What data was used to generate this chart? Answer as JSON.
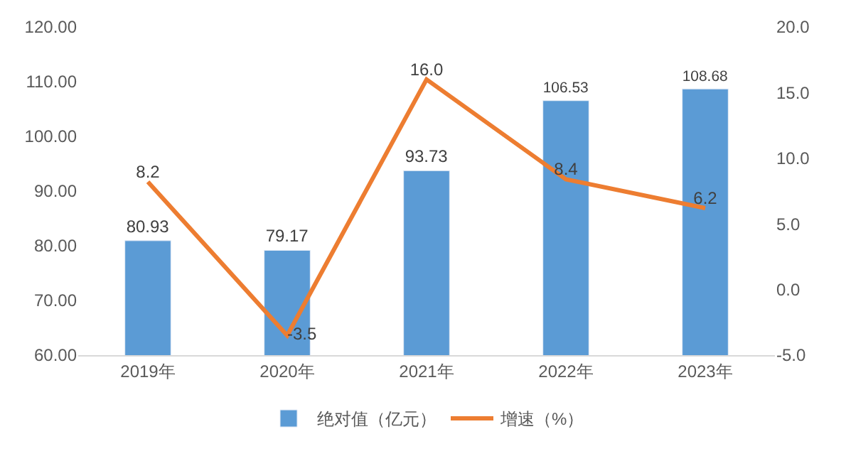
{
  "chart_data": {
    "type": "bar",
    "categories": [
      "2019年",
      "2020年",
      "2021年",
      "2022年",
      "2023年"
    ],
    "series": [
      {
        "name": "绝对值（亿元）",
        "color": "#5b9bd5",
        "values": [
          80.93,
          79.17,
          93.73,
          106.53,
          108.68
        ]
      },
      {
        "name": "增速（%）",
        "type": "line",
        "axis": "y2",
        "color": "#ed7d31",
        "values": [
          8.2,
          -3.5,
          16.0,
          8.4,
          6.2
        ],
        "value_labels": [
          "8.2",
          "-3.5",
          "16.0",
          "8.4",
          "6.2"
        ]
      }
    ],
    "ylim": [
      60,
      120
    ],
    "yticks": [
      {
        "value": 60,
        "label": "60.00"
      },
      {
        "value": 70,
        "label": "70.00"
      },
      {
        "value": 80,
        "label": "80.00"
      },
      {
        "value": 90,
        "label": "90.00"
      },
      {
        "value": 100,
        "label": "100.00"
      },
      {
        "value": 110,
        "label": "110.00"
      },
      {
        "value": 120,
        "label": "120.00"
      }
    ],
    "y2lim": [
      -5,
      20
    ],
    "y2ticks": [
      {
        "value": -5,
        "label": "-5.0"
      },
      {
        "value": 0,
        "label": "0.0"
      },
      {
        "value": 5,
        "label": "5.0"
      },
      {
        "value": 10,
        "label": "10.0"
      },
      {
        "value": 15,
        "label": "15.0"
      },
      {
        "value": 20,
        "label": "20.0"
      }
    ],
    "data_labels": true,
    "legend": "bottom",
    "marker": "none"
  }
}
